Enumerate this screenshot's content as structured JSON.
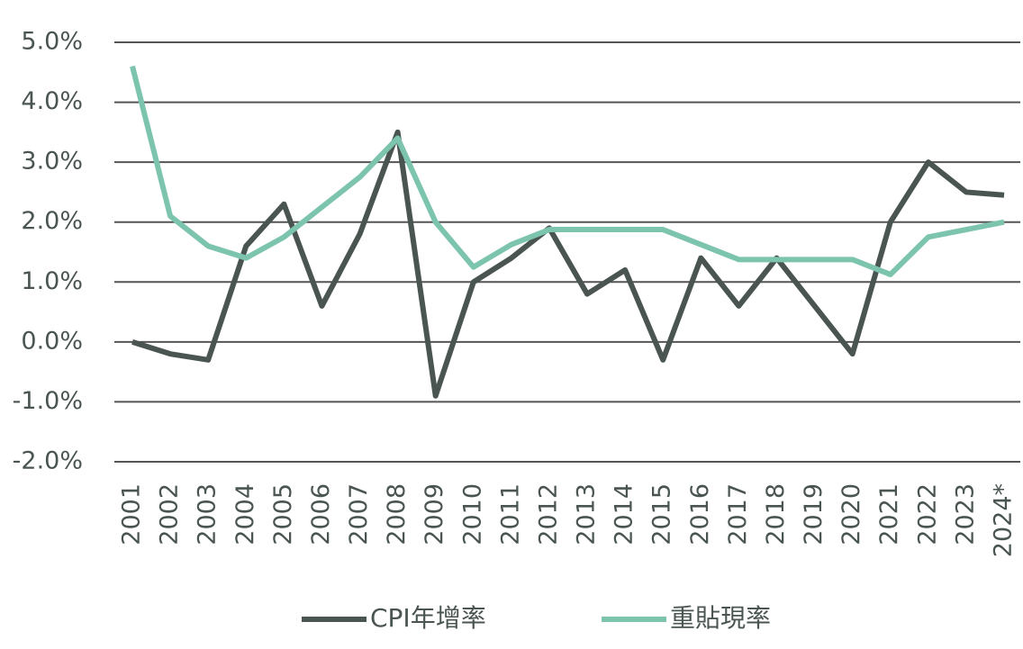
{
  "chart_data": {
    "type": "line",
    "categories": [
      "2001",
      "2002",
      "2003",
      "2004",
      "2005",
      "2006",
      "2007",
      "2008",
      "2009",
      "2010",
      "2011",
      "2012",
      "2013",
      "2014",
      "2015",
      "2016",
      "2017",
      "2018",
      "2019",
      "2020",
      "2021",
      "2022",
      "2023",
      "2024*"
    ],
    "series": [
      {
        "name": "CPI年增率",
        "color": "#4a5552",
        "values": [
          0.0,
          -0.2,
          -0.3,
          1.6,
          2.3,
          0.6,
          1.8,
          3.5,
          -0.9,
          1.0,
          1.4,
          1.9,
          0.8,
          1.2,
          -0.3,
          1.4,
          0.6,
          1.4,
          0.6,
          -0.2,
          2.0,
          3.0,
          2.5,
          2.45
        ]
      },
      {
        "name": "重貼現率",
        "color": "#7cc4ad",
        "values": [
          4.6,
          2.1,
          1.6,
          1.4,
          1.75,
          2.25,
          2.75,
          3.4,
          2.0,
          1.25,
          1.625,
          1.875,
          1.875,
          1.875,
          1.875,
          1.625,
          1.375,
          1.375,
          1.375,
          1.375,
          1.125,
          1.75,
          1.875,
          2.0
        ]
      }
    ],
    "ylim": [
      -2,
      5
    ],
    "yticks": [
      {
        "value": -2,
        "label": "-2.0%"
      },
      {
        "value": -1,
        "label": "-1.0%"
      },
      {
        "value": 0,
        "label": "0.0%"
      },
      {
        "value": 1,
        "label": "1.0%"
      },
      {
        "value": 2,
        "label": "2.0%"
      },
      {
        "value": 3,
        "label": "3.0%"
      },
      {
        "value": 4,
        "label": "4.0%"
      },
      {
        "value": 5,
        "label": "5.0%"
      }
    ],
    "grid": true,
    "legend": "bottom"
  }
}
